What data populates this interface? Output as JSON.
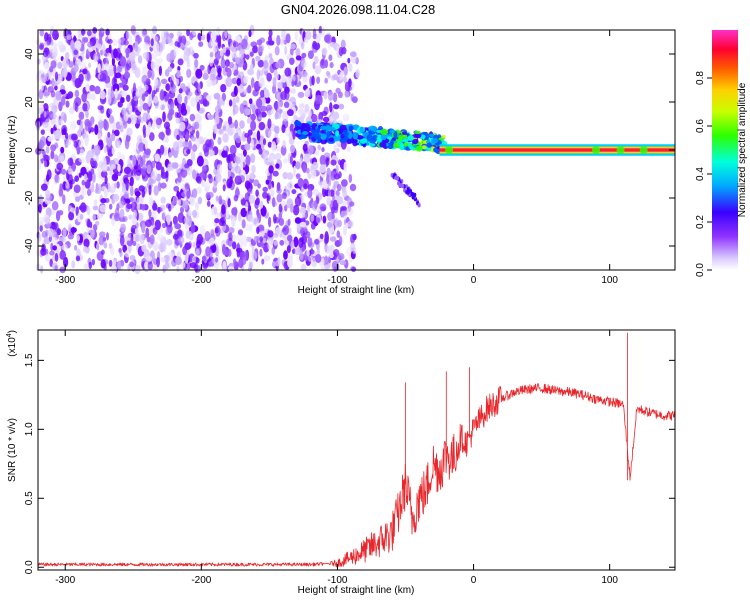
{
  "title": "GN04.2026.098.11.04.C28",
  "chart_data": [
    {
      "type": "heatmap",
      "xlabel": "Height of straight line (km)",
      "ylabel": "Frequency (Hz)",
      "xlim": [
        -320,
        148
      ],
      "ylim": [
        -50,
        50
      ],
      "xticks": [
        -300,
        -200,
        -100,
        0,
        100
      ],
      "yticks": [
        -40,
        -20,
        0,
        20,
        40
      ],
      "colorbar": {
        "label": "Normalized spectral amplitude",
        "range": [
          0,
          1
        ],
        "ticks": [
          0.0,
          0.2,
          0.4,
          0.6,
          0.8
        ]
      },
      "regions": [
        {
          "x_range": [
            -320,
            -100
          ],
          "freq_range": [
            -50,
            50
          ],
          "level": "low-noise"
        },
        {
          "x_range": [
            -130,
            -25
          ],
          "center_freq": [
            8,
            3
          ],
          "level": "rising"
        },
        {
          "x_range": [
            -60,
            -40
          ],
          "center_freq": [
            -10,
            -22
          ],
          "level": "low"
        },
        {
          "x_range": [
            -25,
            148
          ],
          "center_freq": 0,
          "level": "max"
        }
      ]
    },
    {
      "type": "line",
      "xlabel": "Height of straight line (km)",
      "ylabel": "SNR (10 * v/v)",
      "y_scale_label": "(x10",
      "y_scale_exp": "4",
      "xlim": [
        -320,
        148
      ],
      "ylim": [
        -0.02,
        1.72
      ],
      "xticks": [
        -300,
        -200,
        -100,
        0,
        100
      ],
      "yticks": [
        0.0,
        0.5,
        1.0,
        1.5
      ],
      "color": "#e8262b",
      "x": [
        -320,
        -200,
        -120,
        -100,
        -90,
        -80,
        -70,
        -60,
        -55,
        -50,
        -45,
        -40,
        -35,
        -30,
        -25,
        -20,
        -15,
        -10,
        -5,
        0,
        10,
        20,
        30,
        40,
        50,
        60,
        70,
        80,
        90,
        100,
        110,
        115,
        120,
        130,
        140,
        148
      ],
      "y": [
        0.02,
        0.02,
        0.02,
        0.03,
        0.07,
        0.12,
        0.18,
        0.25,
        0.4,
        0.6,
        0.35,
        0.5,
        0.55,
        0.75,
        0.7,
        0.82,
        0.78,
        0.95,
        0.9,
        1.0,
        1.15,
        1.22,
        1.27,
        1.29,
        1.3,
        1.28,
        1.27,
        1.25,
        1.22,
        1.2,
        1.18,
        0.65,
        1.15,
        1.12,
        1.1,
        1.1
      ],
      "spikes": [
        {
          "x": -50,
          "y": 1.34
        },
        {
          "x": -20,
          "y": 1.42
        },
        {
          "x": -3,
          "y": 1.45
        },
        {
          "x": 113,
          "y": 1.7
        },
        {
          "x": 113,
          "y": 0.63
        }
      ]
    }
  ]
}
